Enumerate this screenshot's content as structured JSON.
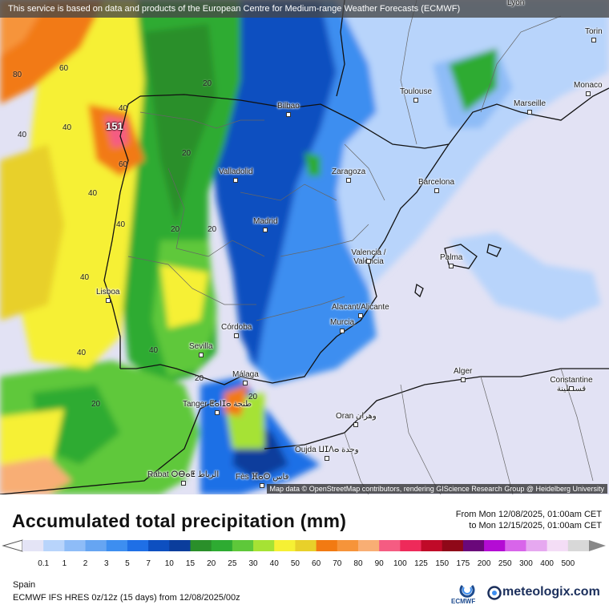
{
  "banner": "This service is based on data and products of the European Centre for Medium-range Weather Forecasts (ECMWF)",
  "attribution": "Map data © OpenStreetMap contributors, rendering GIScience Research Group @ Heidelberg University",
  "cities": [
    {
      "name": "Lyon"
    },
    {
      "name": "Torin"
    },
    {
      "name": "Monaco"
    },
    {
      "name": "Toulouse"
    },
    {
      "name": "Marseille"
    },
    {
      "name": "Bilbao"
    },
    {
      "name": "Valladolid"
    },
    {
      "name": "Zaragoza"
    },
    {
      "name": "Barcelona"
    },
    {
      "name": "Madrid"
    },
    {
      "name": "Valencia / València"
    },
    {
      "name": "Palma"
    },
    {
      "name": "Lisboa"
    },
    {
      "name": "Alacant/Alicante"
    },
    {
      "name": "Murcia"
    },
    {
      "name": "Córdoba"
    },
    {
      "name": "Sevilla"
    },
    {
      "name": "Málaga"
    },
    {
      "name": "Alger"
    },
    {
      "name": "Constantine قسنطينة"
    },
    {
      "name": "Tanger ⵟⴰⵏⵊⴰ طنجة"
    },
    {
      "name": "Oran وهران"
    },
    {
      "name": "Oujda ⵡⵊⴷⴰ وجدة"
    },
    {
      "name": "Rabat ⵔⴱⴰⵟ الرباط"
    },
    {
      "name": "Fès ⴼⴰⵙ فاس"
    }
  ],
  "contour_labels": [
    "80",
    "60",
    "40",
    "40",
    "40",
    "40",
    "40",
    "40",
    "40",
    "40",
    "60",
    "20",
    "20",
    "20",
    "20",
    "20",
    "20",
    "20",
    "151"
  ],
  "title": "Accumulated total precipitation (mm)",
  "period": {
    "from": "From Mon 12/08/2025, 01:00am CET",
    "to": "to Mon 12/15/2025, 01:00am CET"
  },
  "legend": {
    "values": [
      "0.1",
      "1",
      "2",
      "3",
      "5",
      "7",
      "10",
      "15",
      "20",
      "25",
      "30",
      "40",
      "50",
      "60",
      "70",
      "80",
      "90",
      "100",
      "125",
      "150",
      "175",
      "200",
      "250",
      "300",
      "400",
      "500"
    ],
    "colors": [
      "#e4e4f6",
      "#b8d4fb",
      "#8ebcf7",
      "#66a5f2",
      "#3d8ef0",
      "#1f6fe6",
      "#0d4fc0",
      "#0b3d9c",
      "#2a8f2a",
      "#2eab32",
      "#5ec83a",
      "#a6e234",
      "#f6f034",
      "#e8d02a",
      "#f27a12",
      "#f6943a",
      "#f8ae74",
      "#f55c82",
      "#ee2a5a",
      "#c00a28",
      "#8f0818",
      "#6a087a",
      "#b40cd4",
      "#d865ea",
      "#e6a8f0",
      "#f4ddf6",
      "#d8d8d8"
    ],
    "under_color": "#ffffff",
    "over_color": "#888888"
  },
  "region": "Spain",
  "model": "ECMWF IFS HRES 0z/12z (15 days) from 12/08/2025/00z",
  "logos": {
    "ecmwf": "ECMWF",
    "meteologix": "meteologix.com"
  }
}
